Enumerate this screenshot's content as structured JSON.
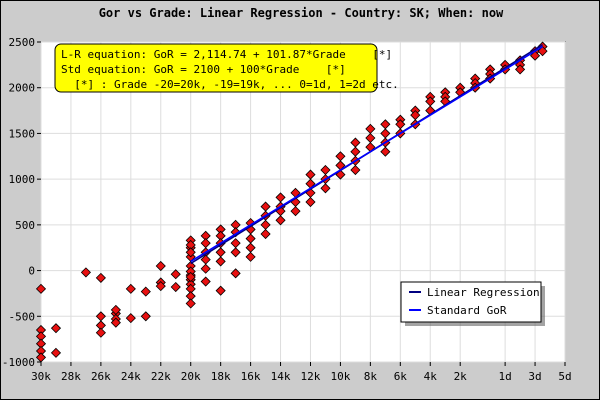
{
  "chart_data": {
    "type": "scatter",
    "title": "Gor vs Grade: Linear Regression - Country: SK; When: now",
    "xlabel": "",
    "ylabel": "",
    "x_tick_labels": [
      "30k",
      "28k",
      "26k",
      "24k",
      "22k",
      "20k",
      "18k",
      "16k",
      "14k",
      "12k",
      "10k",
      "8k",
      "6k",
      "4k",
      "2k",
      "1d",
      "3d",
      "5d"
    ],
    "x_tick_grades": [
      -30,
      -28,
      -26,
      -24,
      -22,
      -20,
      -18,
      -16,
      -14,
      -12,
      -10,
      -8,
      -6,
      -4,
      -2,
      1,
      3,
      5
    ],
    "xlim": [
      -30,
      5
    ],
    "ylim": [
      -1000,
      2500
    ],
    "y_ticks": [
      -1000,
      -500,
      0,
      500,
      1000,
      1500,
      2000,
      2500
    ],
    "grid": true,
    "annotation": [
      "L-R equation: GoR = 2,114.74 + 101.87*Grade    [*]",
      "Std equation: GoR = 2100 + 100*Grade    [*]",
      "  [*] : Grade -20=20k, -19=19k, ... 0=1d, 1=2d etc."
    ],
    "legend": {
      "placement": "lower-right",
      "entries": [
        "Linear Regression",
        "Standard GoR"
      ]
    },
    "series": [
      {
        "name": "Linear Regression",
        "type": "line",
        "intercept": 2114.74,
        "slope": 101.87,
        "x_range": [
          -20,
          3.5
        ],
        "color": "#000080"
      },
      {
        "name": "Standard GoR",
        "type": "line",
        "intercept": 2100,
        "slope": 100,
        "x_range": [
          -20,
          3.5
        ],
        "color": "#0000ff"
      }
    ],
    "points": {
      "color": "#e81010",
      "x": [
        -30,
        -30,
        -30,
        -30,
        -30,
        -30,
        -29,
        -29,
        -27,
        -26,
        -26,
        -26,
        -26,
        -25,
        -25,
        -25,
        -25,
        -24,
        -24,
        -23,
        -23,
        -22,
        -22,
        -22,
        -21,
        -21,
        -20,
        -20,
        -20,
        -20,
        -20,
        -20,
        -20,
        -20,
        -20,
        -20,
        -20,
        -20,
        -20,
        -20,
        -19,
        -19,
        -19,
        -19,
        -19,
        -19,
        -18,
        -18,
        -18,
        -18,
        -18,
        -18,
        -17,
        -17,
        -17,
        -17,
        -17,
        -16,
        -16,
        -16,
        -16,
        -16,
        -15,
        -15,
        -15,
        -15,
        -14,
        -14,
        -14,
        -14,
        -13,
        -13,
        -13,
        -12,
        -12,
        -12,
        -12,
        -11,
        -11,
        -11,
        -10,
        -10,
        -10,
        -9,
        -9,
        -9,
        -9,
        -8,
        -8,
        -8,
        -7,
        -7,
        -7,
        -7,
        -6,
        -6,
        -6,
        -5,
        -5,
        -5,
        -4,
        -4,
        -4,
        -3,
        -3,
        -3,
        -2,
        -2,
        -1,
        -1,
        -1,
        0,
        0,
        0,
        1,
        1,
        2,
        2,
        2,
        3,
        3,
        3.5,
        3.5
      ],
      "y": [
        -200,
        -650,
        -720,
        -800,
        -880,
        -950,
        -630,
        -900,
        -20,
        -80,
        -500,
        -600,
        -680,
        -470,
        -530,
        -570,
        -430,
        -200,
        -520,
        -230,
        -500,
        -130,
        -170,
        50,
        -40,
        -180,
        330,
        250,
        150,
        50,
        -50,
        -100,
        -150,
        -200,
        -280,
        -360,
        280,
        200,
        -10,
        -70,
        380,
        300,
        200,
        120,
        20,
        -120,
        450,
        380,
        300,
        200,
        100,
        -220,
        500,
        420,
        300,
        200,
        -30,
        520,
        450,
        350,
        250,
        150,
        700,
        600,
        500,
        400,
        800,
        700,
        650,
        550,
        850,
        750,
        650,
        1050,
        950,
        850,
        750,
        1100,
        1000,
        900,
        1250,
        1150,
        1050,
        1400,
        1300,
        1200,
        1100,
        1550,
        1450,
        1350,
        1600,
        1500,
        1400,
        1300,
        1650,
        1600,
        1500,
        1750,
        1700,
        1600,
        1900,
        1850,
        1750,
        1950,
        1900,
        1850,
        2000,
        1950,
        2100,
        2050,
        2000,
        2200,
        2150,
        2100,
        2250,
        2200,
        2300,
        2250,
        2200,
        2400,
        2350,
        2450,
        2400
      ]
    }
  }
}
